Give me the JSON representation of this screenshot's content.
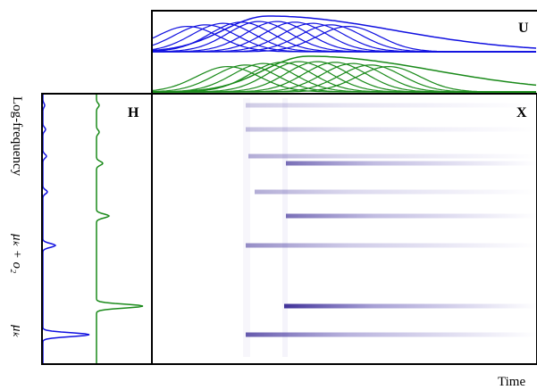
{
  "panels": {
    "u": {
      "label": "U"
    },
    "h": {
      "label": "H"
    },
    "x": {
      "label": "X"
    }
  },
  "axes": {
    "y_label": "Log-frequency",
    "x_label": "Time",
    "annotations": [
      "μₖ + o₂",
      "μₖ"
    ]
  }
}
